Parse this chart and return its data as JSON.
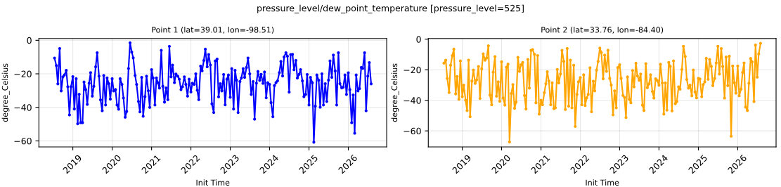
{
  "chart_data": [
    {
      "type": "line",
      "title": "Point 1 (lat=39.01, lon=-98.51)",
      "xlabel": "Init Time",
      "ylabel": "degree_Celsius",
      "annotations": [
        "pressure_level/dew_point_temperature [pressure_level=525]"
      ],
      "grid": true,
      "marker": "circle",
      "line_style": "solid",
      "xlim": [
        "2018-02-20",
        "2026-12-23"
      ],
      "ylim": [
        -63.6,
        1.1
      ],
      "yticks": [
        -60,
        -40,
        -20,
        0
      ],
      "xticks": [
        {
          "value": "2019-01-01",
          "label": "2019"
        },
        {
          "value": "2020-01-01",
          "label": "2020"
        },
        {
          "value": "2021-01-01",
          "label": "2021"
        },
        {
          "value": "2022-01-01",
          "label": "2022"
        },
        {
          "value": "2023-01-01",
          "label": "2023"
        },
        {
          "value": "2024-01-01",
          "label": "2024"
        },
        {
          "value": "2025-01-01",
          "label": "2025"
        },
        {
          "value": "2026-01-01",
          "label": "2026"
        }
      ],
      "x": [
        "2018-07-15",
        "2018-08-01",
        "2018-08-15",
        "2018-09-01",
        "2018-09-15",
        "2018-10-01",
        "2018-10-15",
        "2018-11-01",
        "2018-11-15",
        "2018-12-01",
        "2018-12-15",
        "2019-01-01",
        "2019-01-15",
        "2019-02-01",
        "2019-02-15",
        "2019-03-01",
        "2019-03-15",
        "2019-04-01",
        "2019-04-15",
        "2019-05-01",
        "2019-05-15",
        "2019-06-01",
        "2019-06-15",
        "2019-07-01",
        "2019-07-15",
        "2019-08-01",
        "2019-08-15",
        "2019-09-01",
        "2019-09-15",
        "2019-10-01",
        "2019-10-15",
        "2019-11-01",
        "2019-11-15",
        "2019-12-01",
        "2019-12-15",
        "2020-01-01",
        "2020-01-15",
        "2020-02-01",
        "2020-02-15",
        "2020-03-01",
        "2020-03-15",
        "2020-04-01",
        "2020-04-15",
        "2020-05-01",
        "2020-05-15",
        "2020-06-01",
        "2020-06-15",
        "2020-07-01",
        "2020-07-15",
        "2020-08-01",
        "2020-08-15",
        "2020-09-01",
        "2020-09-15",
        "2020-10-01",
        "2020-10-15",
        "2020-11-01",
        "2020-11-15",
        "2020-12-01",
        "2020-12-15",
        "2021-01-01",
        "2021-01-15",
        "2021-02-01",
        "2021-02-15",
        "2021-03-01",
        "2021-03-15",
        "2021-04-01",
        "2021-04-15",
        "2021-05-01",
        "2021-05-15",
        "2021-06-01",
        "2021-06-15",
        "2021-07-01",
        "2021-07-15",
        "2021-08-01",
        "2021-08-15",
        "2021-09-01",
        "2021-09-15",
        "2021-10-01",
        "2021-10-15",
        "2021-11-01",
        "2021-11-15",
        "2021-12-01",
        "2021-12-15",
        "2022-01-01",
        "2022-01-15",
        "2022-02-01",
        "2022-02-15",
        "2022-03-01",
        "2022-03-15",
        "2022-04-01",
        "2022-04-15",
        "2022-05-01",
        "2022-05-15",
        "2022-06-01",
        "2022-06-15",
        "2022-07-01",
        "2022-07-15",
        "2022-08-01",
        "2022-08-15",
        "2022-09-01",
        "2022-09-15",
        "2022-10-01",
        "2022-10-15",
        "2022-11-01",
        "2022-11-15",
        "2022-12-01",
        "2022-12-15",
        "2023-01-01",
        "2023-01-15",
        "2023-02-01",
        "2023-02-15",
        "2023-03-01",
        "2023-03-15",
        "2023-04-01",
        "2023-04-15",
        "2023-05-01",
        "2023-05-15",
        "2023-06-01",
        "2023-06-15",
        "2023-07-01",
        "2023-07-15",
        "2023-08-01",
        "2023-08-15",
        "2023-09-01",
        "2023-09-15",
        "2023-10-01",
        "2023-10-15",
        "2023-11-01",
        "2023-11-15",
        "2023-12-01",
        "2023-12-15",
        "2024-01-01",
        "2024-01-15",
        "2024-02-01",
        "2024-02-15",
        "2024-03-01",
        "2024-03-15",
        "2024-04-01",
        "2024-04-15",
        "2024-05-01",
        "2024-05-15",
        "2024-06-01",
        "2024-06-15",
        "2024-07-01",
        "2024-07-15",
        "2024-08-01",
        "2024-08-15",
        "2024-09-01",
        "2024-09-15",
        "2024-10-01",
        "2024-10-15",
        "2024-11-01",
        "2024-11-15",
        "2024-12-01",
        "2024-12-15",
        "2025-01-01",
        "2025-01-15",
        "2025-02-01",
        "2025-02-15",
        "2025-03-01",
        "2025-03-15",
        "2025-04-01",
        "2025-04-15",
        "2025-05-01",
        "2025-05-15",
        "2025-06-01",
        "2025-06-15",
        "2025-07-01",
        "2025-07-15",
        "2025-08-01",
        "2025-08-15",
        "2025-09-01",
        "2025-09-15",
        "2025-10-01",
        "2025-10-15",
        "2025-11-01",
        "2025-11-15",
        "2025-12-01",
        "2025-12-15",
        "2026-01-01",
        "2026-01-15",
        "2026-02-01",
        "2026-02-15",
        "2026-03-01",
        "2026-03-15",
        "2026-04-01",
        "2026-04-15",
        "2026-05-01",
        "2026-05-15",
        "2026-06-01",
        "2026-06-15",
        "2026-07-01",
        "2026-07-15",
        "2026-08-01"
      ],
      "series": [
        {
          "color": "#0000ff",
          "values": [
            -10.6,
            -15.1,
            -26,
            -4.9,
            -30.2,
            -21.8,
            -20.7,
            -17.9,
            -27.7,
            -44.5,
            -27.7,
            -21.7,
            -41,
            -22.9,
            -49.8,
            -32.2,
            -49.1,
            -49.1,
            -24.9,
            -29.4,
            -38.2,
            -25.6,
            -19.3,
            -33.3,
            -27.4,
            -15.8,
            -7.4,
            -21.4,
            -35.5,
            -42,
            -21,
            -38.6,
            -22.4,
            -25.9,
            -35.1,
            -22.9,
            -30.2,
            -29.4,
            -38.6,
            -41.1,
            -22.9,
            -26.3,
            -34.4,
            -45.9,
            -42.4,
            -16.8,
            -1.5,
            -7,
            -10.5,
            -21,
            -26.3,
            -36.5,
            -42.7,
            -22.1,
            -45.3,
            -33.6,
            -21.4,
            -30.1,
            -40,
            -17.5,
            -22.5,
            -38.6,
            -22.4,
            -25.3,
            -28.5,
            -6,
            -27.4,
            -36.9,
            -28.4,
            -35.4,
            -3.6,
            -21.8,
            -14.8,
            -25.2,
            -20.1,
            -21.4,
            -23.2,
            -29.4,
            -27.7,
            -21.8,
            -26.3,
            -33.3,
            -23.2,
            -30.8,
            -25.6,
            -26.3,
            -20,
            -29.8,
            -35.4,
            -15.4,
            -18.2,
            -12,
            -5.3,
            -15.8,
            -8.5,
            -14.7,
            -37.9,
            -43.1,
            -12.3,
            -11.2,
            -33.7,
            -25.9,
            -30.2,
            -20.4,
            -38.5,
            -23.2,
            -20.7,
            -34,
            -16.9,
            -41,
            -17.9,
            -23.8,
            -43.1,
            -24.6,
            -22.4,
            -16.9,
            -22.1,
            -16.2,
            -10.6,
            -20,
            -32.3,
            -24.6,
            -47,
            -25.6,
            -18.6,
            -23.9,
            -20.3,
            -25.7,
            -18.9,
            -34.3,
            -25.3,
            -26.3,
            -37.2,
            -45.6,
            -27,
            -25.2,
            -24.2,
            -19.3,
            -12.6,
            -21.3,
            -9.9,
            -7.4,
            -9.5,
            -30.9,
            -8.5,
            -8.4,
            -17.6,
            -12,
            -22.5,
            -20.3,
            -17.5,
            -24.2,
            -33.6,
            -32.3,
            -20.4,
            -38.6,
            -22.1,
            -25.3,
            -60.8,
            -39.3,
            -20.7,
            -23.8,
            -39.9,
            -20,
            -38.6,
            -25.9,
            -36.5,
            -23.8,
            -12.3,
            -22.1,
            -8.8,
            -18.3,
            -38.6,
            -7.4,
            -25.9,
            -28.4,
            -28,
            -20.7,
            -32.3,
            -19.4,
            -29.4,
            -49.1,
            -32.6,
            -55.4,
            -20.7,
            -30.2,
            -28.8,
            -16.2,
            -16.8,
            -7.4,
            -42,
            -21.4,
            -13.3,
            -26
          ]
        }
      ]
    },
    {
      "type": "line",
      "title": "Point 2 (lat=33.76, lon=-84.40)",
      "xlabel": "Init Time",
      "ylabel": "degree_Celsius",
      "grid": true,
      "marker": "circle",
      "line_style": "solid",
      "xlim": [
        "2018-02-20",
        "2026-12-23"
      ],
      "ylim": [
        -70.5,
        0.5
      ],
      "yticks": [
        -60,
        -40,
        -20,
        0
      ],
      "xticks": [
        {
          "value": "2019-01-01",
          "label": "2019"
        },
        {
          "value": "2020-01-01",
          "label": "2020"
        },
        {
          "value": "2021-01-01",
          "label": "2021"
        },
        {
          "value": "2022-01-01",
          "label": "2022"
        },
        {
          "value": "2023-01-01",
          "label": "2023"
        },
        {
          "value": "2024-01-01",
          "label": "2024"
        },
        {
          "value": "2025-01-01",
          "label": "2025"
        },
        {
          "value": "2026-01-01",
          "label": "2026"
        }
      ],
      "x": [
        "2018-07-15",
        "2018-08-01",
        "2018-08-15",
        "2018-09-01",
        "2018-09-15",
        "2018-10-01",
        "2018-10-15",
        "2018-11-01",
        "2018-11-15",
        "2018-12-01",
        "2018-12-15",
        "2019-01-01",
        "2019-01-15",
        "2019-02-01",
        "2019-02-15",
        "2019-03-01",
        "2019-03-15",
        "2019-04-01",
        "2019-04-15",
        "2019-05-01",
        "2019-05-15",
        "2019-06-01",
        "2019-06-15",
        "2019-07-01",
        "2019-07-15",
        "2019-08-01",
        "2019-08-15",
        "2019-09-01",
        "2019-09-15",
        "2019-10-01",
        "2019-10-15",
        "2019-11-01",
        "2019-11-15",
        "2019-12-01",
        "2019-12-15",
        "2020-01-01",
        "2020-01-15",
        "2020-02-01",
        "2020-02-15",
        "2020-03-01",
        "2020-03-15",
        "2020-04-01",
        "2020-04-15",
        "2020-05-01",
        "2020-05-15",
        "2020-06-01",
        "2020-06-15",
        "2020-07-01",
        "2020-07-15",
        "2020-08-01",
        "2020-08-15",
        "2020-09-01",
        "2020-09-15",
        "2020-10-01",
        "2020-10-15",
        "2020-11-01",
        "2020-11-15",
        "2020-12-01",
        "2020-12-15",
        "2021-01-01",
        "2021-01-15",
        "2021-02-01",
        "2021-02-15",
        "2021-03-01",
        "2021-03-15",
        "2021-04-01",
        "2021-04-15",
        "2021-05-01",
        "2021-05-15",
        "2021-06-01",
        "2021-06-15",
        "2021-07-01",
        "2021-07-15",
        "2021-08-01",
        "2021-08-15",
        "2021-09-01",
        "2021-09-15",
        "2021-10-01",
        "2021-10-15",
        "2021-11-01",
        "2021-11-15",
        "2021-12-01",
        "2021-12-15",
        "2022-01-01",
        "2022-01-15",
        "2022-02-01",
        "2022-02-15",
        "2022-03-01",
        "2022-03-15",
        "2022-04-01",
        "2022-04-15",
        "2022-05-01",
        "2022-05-15",
        "2022-06-01",
        "2022-06-15",
        "2022-07-01",
        "2022-07-15",
        "2022-08-01",
        "2022-08-15",
        "2022-09-01",
        "2022-09-15",
        "2022-10-01",
        "2022-10-15",
        "2022-11-01",
        "2022-11-15",
        "2022-12-01",
        "2022-12-15",
        "2023-01-01",
        "2023-01-15",
        "2023-02-01",
        "2023-02-15",
        "2023-03-01",
        "2023-03-15",
        "2023-04-01",
        "2023-04-15",
        "2023-05-01",
        "2023-05-15",
        "2023-06-01",
        "2023-06-15",
        "2023-07-01",
        "2023-07-15",
        "2023-08-01",
        "2023-08-15",
        "2023-09-01",
        "2023-09-15",
        "2023-10-01",
        "2023-10-15",
        "2023-11-01",
        "2023-11-15",
        "2023-12-01",
        "2023-12-15",
        "2024-01-01",
        "2024-01-15",
        "2024-02-01",
        "2024-02-15",
        "2024-03-01",
        "2024-03-15",
        "2024-04-01",
        "2024-04-15",
        "2024-05-01",
        "2024-05-15",
        "2024-06-01",
        "2024-06-15",
        "2024-07-01",
        "2024-07-15",
        "2024-08-01",
        "2024-08-15",
        "2024-09-01",
        "2024-09-15",
        "2024-10-01",
        "2024-10-15",
        "2024-11-01",
        "2024-11-15",
        "2024-12-01",
        "2024-12-15",
        "2025-01-01",
        "2025-01-15",
        "2025-02-01",
        "2025-02-15",
        "2025-03-01",
        "2025-03-15",
        "2025-04-01",
        "2025-04-15",
        "2025-05-01",
        "2025-05-15",
        "2025-06-01",
        "2025-06-15",
        "2025-07-01",
        "2025-07-15",
        "2025-08-01",
        "2025-08-15",
        "2025-09-01",
        "2025-09-15",
        "2025-10-01",
        "2025-10-15",
        "2025-11-01",
        "2025-11-15",
        "2025-12-01",
        "2025-12-15",
        "2026-01-01",
        "2026-01-15",
        "2026-02-01",
        "2026-02-15",
        "2026-03-01",
        "2026-03-15",
        "2026-04-01",
        "2026-04-15",
        "2026-05-01",
        "2026-05-15",
        "2026-06-01",
        "2026-06-15",
        "2026-07-01",
        "2026-07-15",
        "2026-08-01"
      ],
      "series": [
        {
          "color": "#ffa500",
          "values": [
            -15.7,
            -13.7,
            -25.6,
            -34.9,
            -17,
            -10.7,
            -6.5,
            -35.8,
            -24.4,
            -39.3,
            -14.2,
            -37.6,
            -30.1,
            -39.9,
            -46.7,
            -13.7,
            -50.7,
            -27.4,
            -20.2,
            -28.9,
            -26.6,
            -17.8,
            -38.8,
            -19.3,
            -9.6,
            -13.7,
            -12.3,
            -4.3,
            -36.5,
            -42.9,
            -21.6,
            -11.4,
            -37.3,
            -27.9,
            -40.6,
            -14.8,
            -38.5,
            -43.1,
            -18.3,
            -16.3,
            -67.3,
            -35.5,
            -29.7,
            -45.2,
            -41.2,
            -11.9,
            -21,
            -16.7,
            -15.2,
            -36.8,
            -45.7,
            -13.2,
            -32,
            -7.3,
            -6.8,
            -9.9,
            -41.6,
            -10.7,
            -49,
            -39.9,
            -42.9,
            -35,
            -29.2,
            -21.3,
            -27.4,
            -42.9,
            -28.5,
            -45.4,
            -44.9,
            -19.8,
            -28.6,
            -22.8,
            -7.3,
            -14.5,
            -46,
            -6.1,
            -43.8,
            -13.7,
            -44.9,
            -17,
            -57.1,
            -36.1,
            -27.9,
            -25.1,
            -42.9,
            -23.3,
            -43.4,
            -38.4,
            -36.1,
            -18.7,
            -47.5,
            -27.5,
            -33.8,
            -20.2,
            -14.5,
            -5.8,
            -8.7,
            -25.9,
            -10.4,
            -21,
            -7.2,
            -25.6,
            -30,
            -49.5,
            -33.8,
            -44.9,
            -18.6,
            -16.7,
            -25.6,
            -36.8,
            -38.1,
            -51.3,
            -24.7,
            -39.3,
            -41.6,
            -20.5,
            -31.2,
            -15.7,
            -24,
            -26.9,
            -22.8,
            -43.1,
            -46.7,
            -16,
            -31.7,
            -29.2,
            -23.3,
            -34.2,
            -38.5,
            -25.9,
            -26.9,
            -30.1,
            -16.4,
            -28.6,
            -49,
            -28.6,
            -46.4,
            -15.2,
            -17.8,
            -46.9,
            -14.2,
            -42.2,
            -40.8,
            -31.2,
            -32.7,
            -19.8,
            -4.6,
            -11.4,
            -26.3,
            -32,
            -30.1,
            -37,
            -20.2,
            -34.5,
            -38.4,
            -25.6,
            -26,
            -37.6,
            -29.7,
            -27.9,
            -12.5,
            -26.2,
            -13.2,
            -17.8,
            -30.4,
            -25.6,
            -15.5,
            -4.6,
            -22.8,
            -6.1,
            -17.8,
            -38.5,
            -11.7,
            -30.4,
            -11.1,
            -63.5,
            -17.5,
            -28.5,
            -35.3,
            -17.5,
            -37,
            -32.7,
            -21.8,
            -15.5,
            -44.4,
            -46.7,
            -28.9,
            -12.6,
            -14.8,
            -40.8,
            -3.8,
            -24.8,
            -9.6,
            -2.7
          ]
        }
      ]
    }
  ]
}
